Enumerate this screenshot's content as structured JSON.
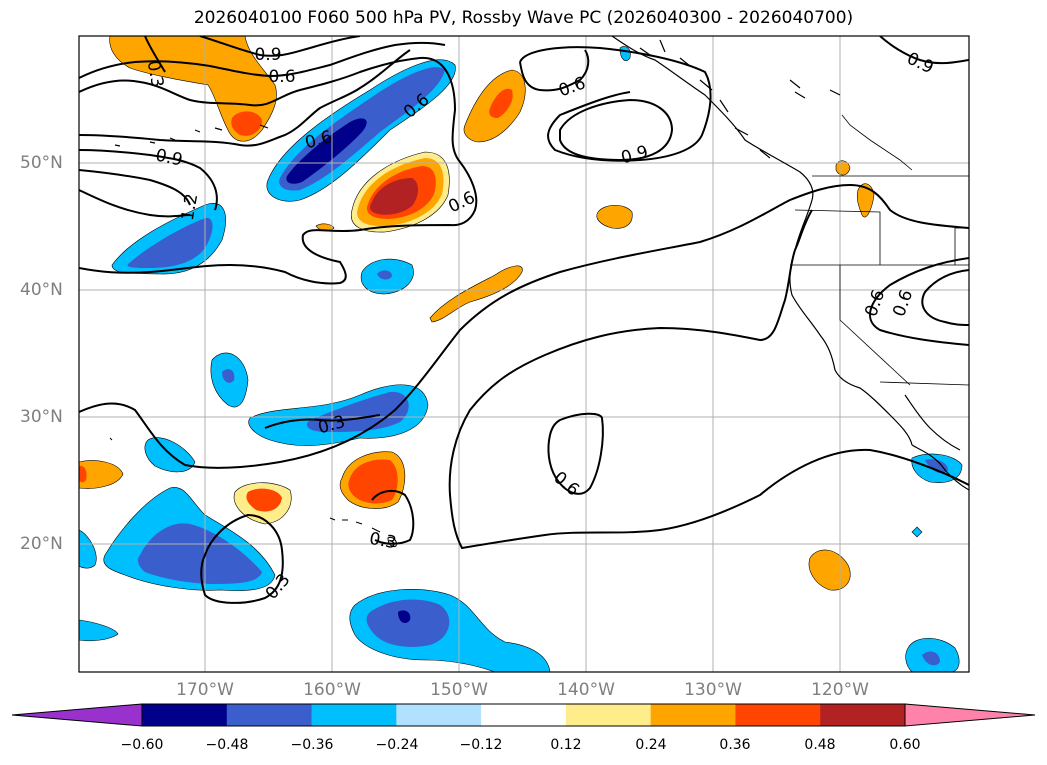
{
  "title": "2026040100 F060 500 hPa PV, Rossby Wave PC (2026040300 - 2026040700)",
  "lon_labels": [
    "170°W",
    "160°W",
    "150°W",
    "140°W",
    "130°W",
    "120°W"
  ],
  "lat_labels": [
    "50°N",
    "40°N",
    "30°N",
    "20°N"
  ],
  "contour_labels": [
    "0.9",
    "0.6",
    "0.3",
    "0.6",
    "0.6",
    "0.9",
    "0.9",
    "1.2",
    "0.6",
    "0.6",
    "0.9",
    "0.6",
    "0.3",
    "0.6",
    "0.3",
    "0.3",
    "0.6"
  ],
  "colorbar": {
    "tick_labels": [
      "−0.60",
      "−0.48",
      "−0.36",
      "−0.24",
      "−0.12",
      "0.12",
      "0.24",
      "0.36",
      "0.48",
      "0.60"
    ],
    "colors": [
      "#9932CC",
      "#00008B",
      "#3A5FCD",
      "#00BFFF",
      "#B0E2FF",
      "#FFFFFF",
      "#FFEC8B",
      "#FFA500",
      "#FF4500",
      "#B22222",
      "#FF82AB"
    ]
  }
}
